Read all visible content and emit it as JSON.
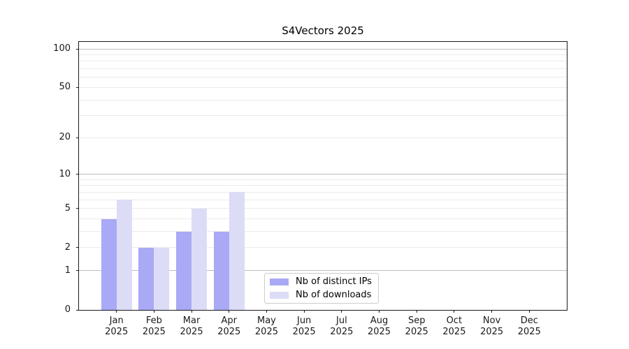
{
  "chart_data": {
    "type": "bar",
    "title": "S4Vectors 2025",
    "year_label": "2025",
    "categories": [
      "Jan",
      "Feb",
      "Mar",
      "Apr",
      "May",
      "Jun",
      "Jul",
      "Aug",
      "Sep",
      "Oct",
      "Nov",
      "Dec"
    ],
    "series": [
      {
        "name": "Nb of distinct IPs",
        "color": "#a9a9f5",
        "values": [
          4,
          2,
          3,
          3,
          0,
          0,
          0,
          0,
          0,
          0,
          0,
          0
        ]
      },
      {
        "name": "Nb of downloads",
        "color": "#dcdcf7",
        "values": [
          6,
          2,
          5,
          7,
          0,
          0,
          0,
          0,
          0,
          0,
          0,
          0
        ]
      }
    ],
    "y_axis": {
      "scale": "log1p",
      "ticks": [
        0,
        1,
        2,
        5,
        10,
        20,
        50,
        100
      ],
      "max": 100,
      "grid_major": [
        1,
        10,
        100
      ],
      "grid_minor": [
        2,
        3,
        4,
        5,
        6,
        7,
        8,
        9,
        20,
        30,
        40,
        50,
        60,
        70,
        80,
        90
      ],
      "grid_minor_color": "#ebebeb",
      "grid_major_color": "#bdbdbd"
    },
    "legend": {
      "position": "bottom-center",
      "border_color": "#cccccc"
    },
    "grid": "horizontal-only",
    "xlabel": "",
    "ylabel": ""
  }
}
